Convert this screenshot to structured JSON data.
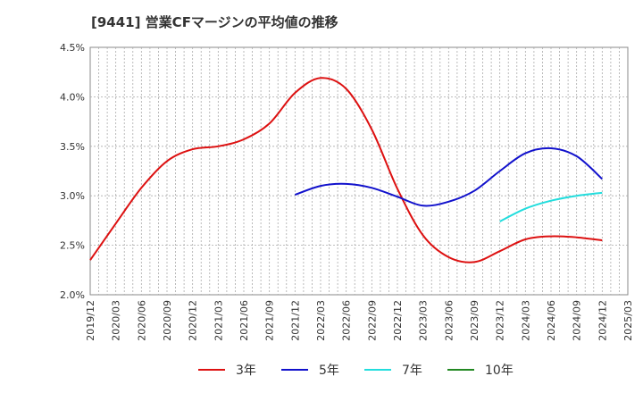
{
  "title": "[9441]  営業CFマージンの平均値の推移",
  "chart_data": {
    "type": "line",
    "title": "[9441]  営業CFマージンの平均値の推移",
    "ylim": [
      2.0,
      4.5
    ],
    "yticks": [
      2.0,
      2.5,
      3.0,
      3.5,
      4.0,
      4.5
    ],
    "ytick_labels": [
      "2.0%",
      "2.5%",
      "3.0%",
      "3.5%",
      "4.0%",
      "4.5%"
    ],
    "xticks": [
      "2019/12",
      "2020/03",
      "2020/06",
      "2020/09",
      "2020/12",
      "2021/03",
      "2021/06",
      "2021/09",
      "2021/12",
      "2022/03",
      "2022/06",
      "2022/09",
      "2022/12",
      "2023/03",
      "2023/06",
      "2023/09",
      "2023/12",
      "2024/03",
      "2024/06",
      "2024/09",
      "2024/12",
      "2025/03"
    ],
    "grid": true,
    "legend_position": "bottom",
    "series": [
      {
        "name": "3年",
        "color": "#dd1111",
        "points": [
          [
            "2019/12",
            2.35
          ],
          [
            "2020/03",
            2.72
          ],
          [
            "2020/06",
            3.08
          ],
          [
            "2020/09",
            3.35
          ],
          [
            "2020/12",
            3.47
          ],
          [
            "2021/03",
            3.5
          ],
          [
            "2021/06",
            3.57
          ],
          [
            "2021/09",
            3.73
          ],
          [
            "2021/12",
            4.04
          ],
          [
            "2022/03",
            4.19
          ],
          [
            "2022/06",
            4.08
          ],
          [
            "2022/09",
            3.67
          ],
          [
            "2022/12",
            3.07
          ],
          [
            "2023/03",
            2.6
          ],
          [
            "2023/06",
            2.38
          ],
          [
            "2023/09",
            2.33
          ],
          [
            "2023/12",
            2.44
          ],
          [
            "2024/03",
            2.56
          ],
          [
            "2024/06",
            2.59
          ],
          [
            "2024/09",
            2.58
          ],
          [
            "2024/12",
            2.55
          ]
        ]
      },
      {
        "name": "5年",
        "color": "#1111cc",
        "points": [
          [
            "2021/12",
            3.01
          ],
          [
            "2022/03",
            3.1
          ],
          [
            "2022/06",
            3.12
          ],
          [
            "2022/09",
            3.08
          ],
          [
            "2022/12",
            2.99
          ],
          [
            "2023/03",
            2.9
          ],
          [
            "2023/06",
            2.94
          ],
          [
            "2023/09",
            3.05
          ],
          [
            "2023/12",
            3.25
          ],
          [
            "2024/03",
            3.43
          ],
          [
            "2024/06",
            3.48
          ],
          [
            "2024/09",
            3.4
          ],
          [
            "2024/12",
            3.17
          ]
        ]
      },
      {
        "name": "7年",
        "color": "#22dddd",
        "points": [
          [
            "2023/12",
            2.74
          ],
          [
            "2024/03",
            2.87
          ],
          [
            "2024/06",
            2.95
          ],
          [
            "2024/09",
            3.0
          ],
          [
            "2024/12",
            3.03
          ]
        ]
      },
      {
        "name": "10年",
        "color": "#228822",
        "points": []
      }
    ]
  }
}
